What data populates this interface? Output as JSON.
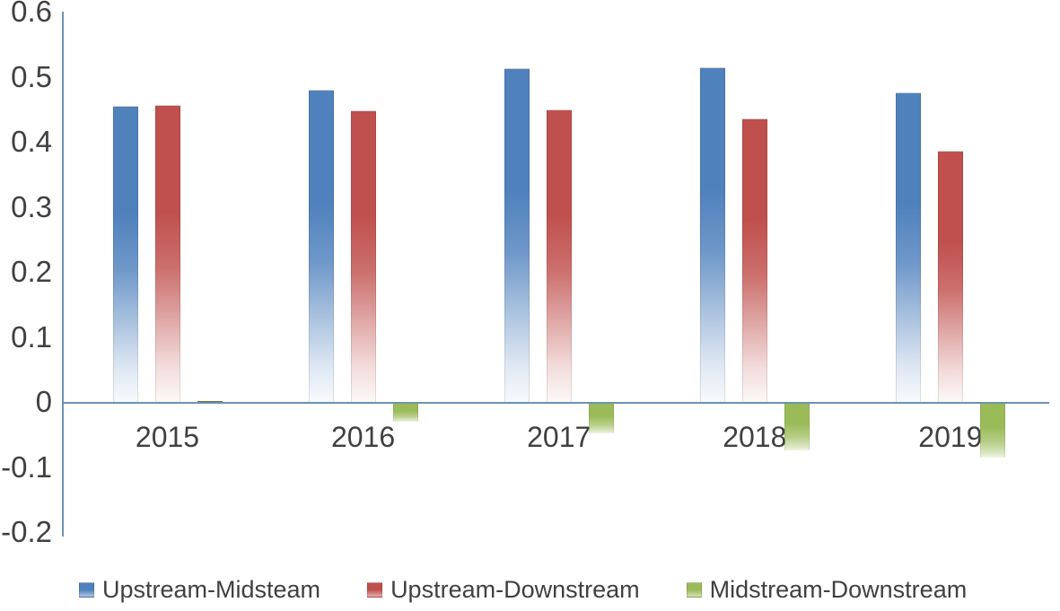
{
  "chart_data": {
    "type": "bar",
    "title": "",
    "xlabel": "",
    "ylabel": "",
    "categories": [
      "2015",
      "2016",
      "2017",
      "2018",
      "2019"
    ],
    "series": [
      {
        "name": "Upstream-Midsteam",
        "color": "#4F81BD",
        "values": [
          0.455,
          0.48,
          0.513,
          0.515,
          0.476
        ]
      },
      {
        "name": "Upstream-Downstream",
        "color": "#C0504D",
        "values": [
          0.457,
          0.448,
          0.45,
          0.436,
          0.386
        ]
      },
      {
        "name": "Midstream-Downstream",
        "color": "#9BBB59",
        "values": [
          0.002,
          -0.03,
          -0.048,
          -0.074,
          -0.085
        ]
      }
    ],
    "ylim": [
      -0.2,
      0.6
    ],
    "yticks": [
      {
        "label": "0.6",
        "value": 0.6
      },
      {
        "label": "0.5",
        "value": 0.5
      },
      {
        "label": "0.4",
        "value": 0.4
      },
      {
        "label": "0.3",
        "value": 0.3
      },
      {
        "label": "0.2",
        "value": 0.2
      },
      {
        "label": "0.1",
        "value": 0.1
      },
      {
        "label": "0",
        "value": 0.0
      },
      {
        "label": "-0.1",
        "value": -0.1
      },
      {
        "label": "-0.2",
        "value": -0.2
      }
    ],
    "grid": false,
    "legend_position": "bottom",
    "bar_style": "gradient-fade-to-white",
    "axis_color": "#6c92b4",
    "text_color": "#404040"
  }
}
